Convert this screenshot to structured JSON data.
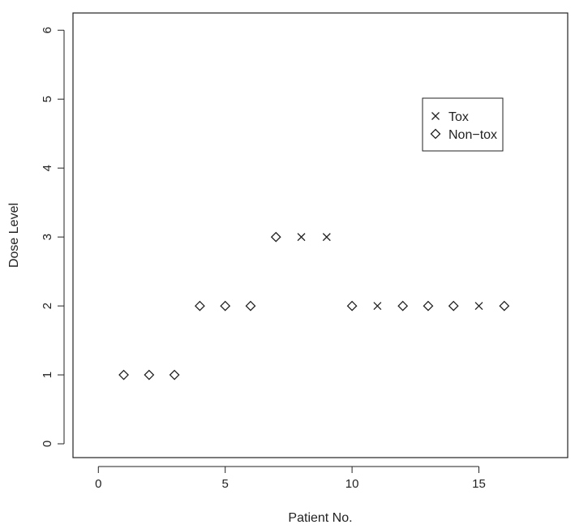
{
  "chart_data": {
    "type": "scatter",
    "title": "",
    "xlabel": "Patient No.",
    "ylabel": "Dose Level",
    "xlim": [
      -1,
      18.5
    ],
    "ylim": [
      -0.2,
      6.25
    ],
    "x_ticks": [
      0,
      5,
      10,
      15
    ],
    "y_ticks": [
      0,
      1,
      2,
      3,
      4,
      5,
      6
    ],
    "x_tick_labels": [
      "0",
      "5",
      "10",
      "15"
    ],
    "y_tick_labels": [
      "0",
      "1",
      "2",
      "3",
      "4",
      "5",
      "6"
    ],
    "grid": false,
    "legend_position": "top-right",
    "series": [
      {
        "name": "Tox",
        "marker": "cross",
        "x": [
          8,
          9,
          11,
          15
        ],
        "y": [
          3,
          3,
          2,
          2
        ]
      },
      {
        "name": "Non-tox",
        "marker": "diamond",
        "x": [
          1,
          2,
          3,
          4,
          5,
          6,
          7,
          10,
          12,
          13,
          14,
          16
        ],
        "y": [
          1,
          1,
          1,
          2,
          2,
          2,
          3,
          2,
          2,
          2,
          2,
          2
        ]
      }
    ],
    "legend": {
      "entries": [
        {
          "label": "Tox",
          "marker": "cross"
        },
        {
          "label": "Non−tox",
          "marker": "diamond"
        }
      ]
    },
    "colors": {
      "marker": "#222222",
      "axis": "#222222",
      "background": "#ffffff"
    }
  }
}
